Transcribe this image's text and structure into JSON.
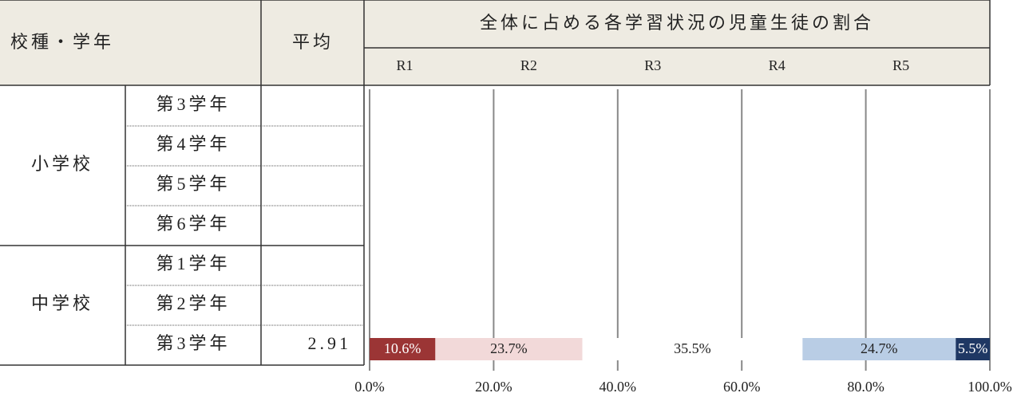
{
  "table": {
    "header": {
      "school_grade": "校種・学年",
      "average": "平均"
    },
    "groups": [
      {
        "name": "小学校",
        "grades": [
          "第3学年",
          "第4学年",
          "第5学年",
          "第6学年"
        ]
      },
      {
        "name": "中学校",
        "grades": [
          "第1学年",
          "第2学年",
          "第3学年"
        ],
        "average": "2.91"
      }
    ]
  },
  "chart_data": {
    "type": "stacked_bar",
    "orientation": "horizontal",
    "title": "全体に占める各学習状況の児童生徒の割合",
    "series": [
      {
        "name": "R1",
        "color": "#9b3535",
        "values": [
          10.6
        ],
        "value_labels": [
          "10.6%"
        ]
      },
      {
        "name": "R2",
        "color": "#f2d9d9",
        "values": [
          23.7
        ],
        "value_labels": [
          "23.7%"
        ]
      },
      {
        "name": "R3",
        "color": "#ffffff",
        "values": [
          35.5
        ],
        "value_labels": [
          "35.5%"
        ]
      },
      {
        "name": "R4",
        "color": "#b9cde5",
        "values": [
          24.7
        ],
        "value_labels": [
          "24.7%"
        ]
      },
      {
        "name": "R5",
        "color": "#1f3864",
        "values": [
          5.5
        ],
        "value_labels": [
          "5.5%"
        ]
      }
    ],
    "xlim": [
      0,
      100
    ],
    "xticks": [
      {
        "value": 0,
        "label": "0.0%"
      },
      {
        "value": 20,
        "label": "20.0%"
      },
      {
        "value": 40,
        "label": "40.0%"
      },
      {
        "value": 60,
        "label": "60.0%"
      },
      {
        "value": 80,
        "label": "80.0%"
      },
      {
        "value": 100,
        "label": "100.0%"
      }
    ],
    "grid": true
  }
}
